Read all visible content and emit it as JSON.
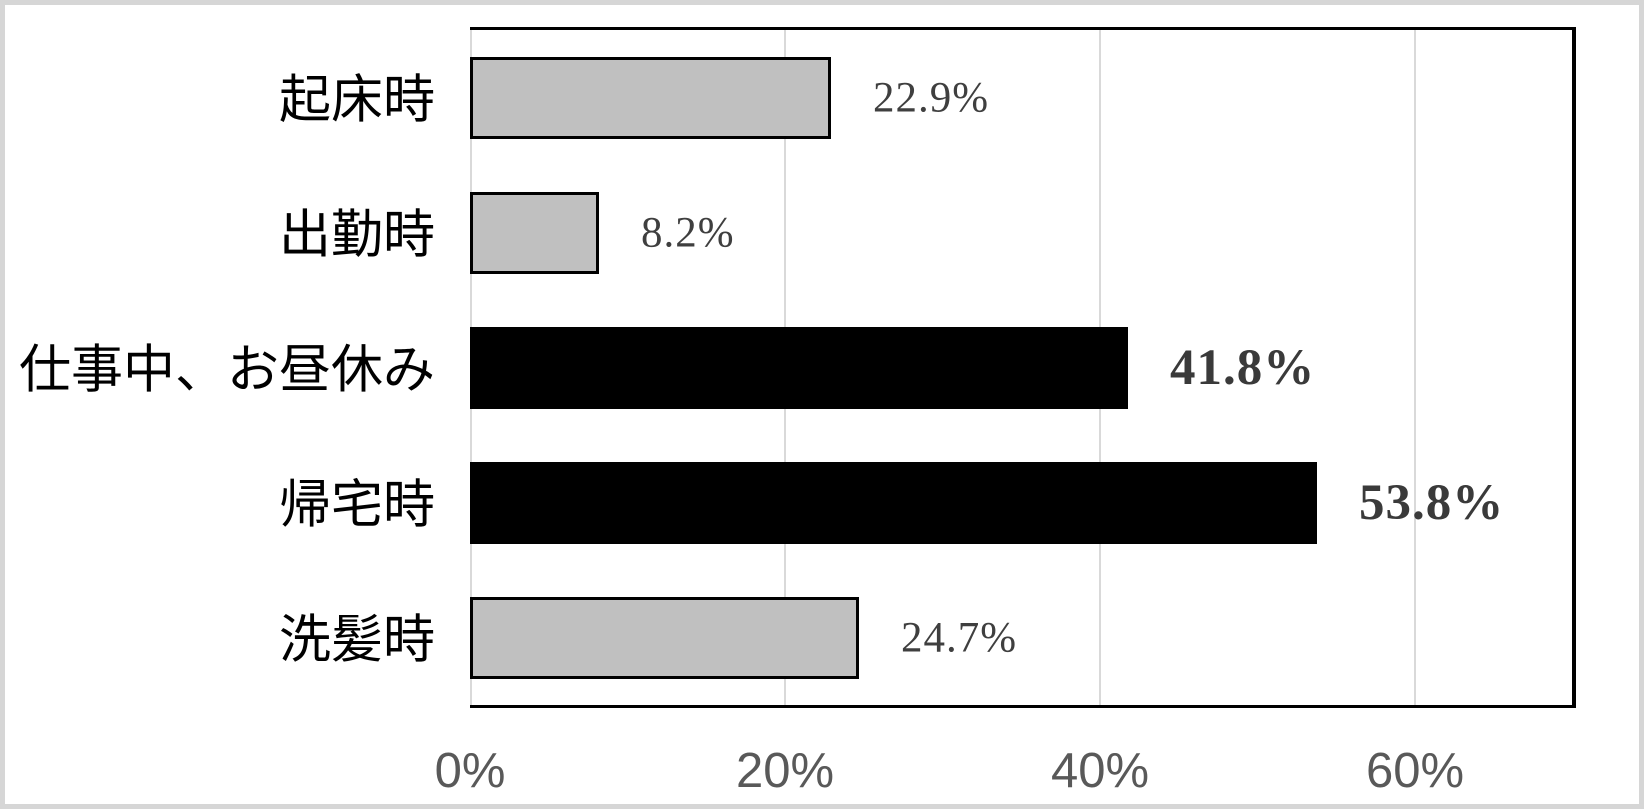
{
  "frame": {
    "border_color": "#d6d6d6",
    "background_color": "#ffffff"
  },
  "chart_data": {
    "type": "bar",
    "orientation": "horizontal",
    "title": "",
    "xlabel": "",
    "ylabel": "",
    "categories": [
      "起床時",
      "出勤時",
      "仕事中、お昼休み",
      "帰宅時",
      "洗髪時"
    ],
    "values": [
      22.9,
      8.2,
      41.8,
      53.8,
      24.7
    ],
    "value_labels": [
      "22.9%",
      "8.2%",
      "41.8%",
      "53.8%",
      "24.7%"
    ],
    "emphasized": [
      false,
      false,
      true,
      true,
      false
    ],
    "bar_fill_colors": [
      "#c0c0c0",
      "#c0c0c0",
      "#000000",
      "#000000",
      "#c0c0c0"
    ],
    "bar_outline_color": "#000000",
    "xlim": [
      0,
      70
    ],
    "x_ticks": [
      {
        "value": 0,
        "label": "0%"
      },
      {
        "value": 20,
        "label": "20%"
      },
      {
        "value": 40,
        "label": "40%"
      },
      {
        "value": 60,
        "label": "60%"
      }
    ],
    "grid": {
      "show": true,
      "color": "#d9d9d9"
    },
    "legend": {
      "position": "none"
    },
    "value_label_color": "#3f3f3f",
    "tick_label_color": "#595959"
  }
}
